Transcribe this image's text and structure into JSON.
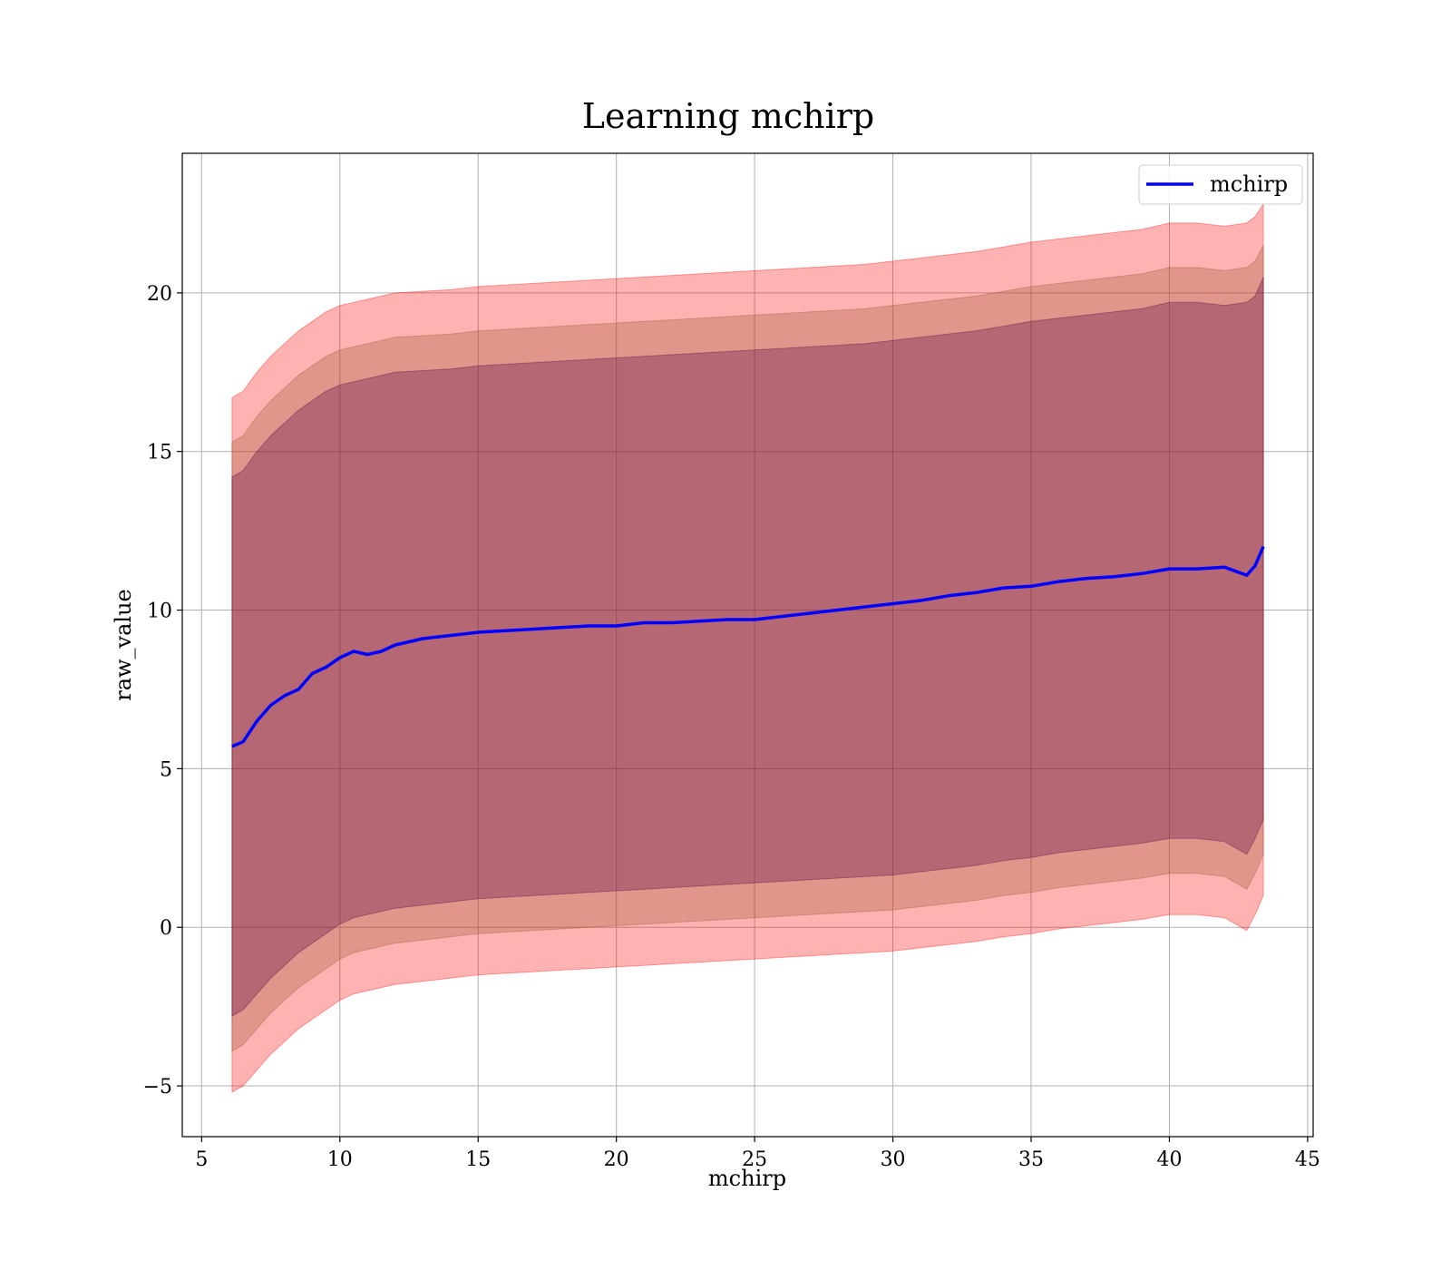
{
  "chart_data": {
    "type": "area",
    "title": "Learning mchirp",
    "xlabel": "mchirp",
    "ylabel": "raw_value",
    "xlim": [
      4.3,
      45.2
    ],
    "ylim": [
      -6.6,
      24.4
    ],
    "xticks": [
      5,
      10,
      15,
      20,
      25,
      30,
      35,
      40,
      45
    ],
    "yticks": [
      -5,
      0,
      5,
      10,
      15,
      20
    ],
    "xtick_labels": [
      "5",
      "10",
      "15",
      "20",
      "25",
      "30",
      "35",
      "40",
      "45"
    ],
    "ytick_labels": [
      "−5",
      "0",
      "5",
      "10",
      "15",
      "20"
    ],
    "grid": true,
    "legend": {
      "position": "top-right",
      "entries": [
        "mchirp"
      ]
    },
    "colors": {
      "line": "#0000ff",
      "band_outer": "#ff0000",
      "band_middle": "#a0522d",
      "band_inner": "#4b0040"
    },
    "x": [
      6.1,
      6.5,
      7.0,
      7.5,
      8.0,
      8.5,
      9.0,
      9.5,
      10.0,
      10.5,
      11.0,
      11.5,
      12.0,
      13.0,
      14.0,
      15.0,
      16.0,
      17.0,
      18.0,
      19.0,
      20.0,
      21.0,
      22.0,
      23.0,
      24.0,
      25.0,
      26.0,
      27.0,
      28.0,
      29.0,
      30.0,
      31.0,
      32.0,
      33.0,
      34.0,
      35.0,
      36.0,
      37.0,
      38.0,
      39.0,
      40.0,
      41.0,
      42.0,
      42.8,
      43.1,
      43.4
    ],
    "series": [
      {
        "name": "mchirp",
        "y": [
          5.7,
          5.85,
          6.5,
          7.0,
          7.3,
          7.5,
          8.0,
          8.2,
          8.5,
          8.7,
          8.6,
          8.7,
          8.9,
          9.1,
          9.2,
          9.3,
          9.35,
          9.4,
          9.45,
          9.5,
          9.5,
          9.6,
          9.6,
          9.65,
          9.7,
          9.7,
          9.8,
          9.9,
          10.0,
          10.1,
          10.2,
          10.3,
          10.45,
          10.55,
          10.7,
          10.75,
          10.9,
          11.0,
          11.05,
          11.15,
          11.3,
          11.3,
          11.35,
          11.1,
          11.4,
          12.0
        ]
      }
    ],
    "bands": [
      {
        "upper": [
          16.7,
          16.9,
          17.5,
          18.0,
          18.4,
          18.8,
          19.1,
          19.4,
          19.6,
          19.7,
          19.8,
          19.9,
          20.0,
          20.05,
          20.1,
          20.2,
          20.25,
          20.3,
          20.35,
          20.4,
          20.45,
          20.5,
          20.55,
          20.6,
          20.65,
          20.7,
          20.75,
          20.8,
          20.85,
          20.9,
          21.0,
          21.1,
          21.2,
          21.3,
          21.45,
          21.6,
          21.7,
          21.8,
          21.9,
          22.0,
          22.2,
          22.2,
          22.1,
          22.2,
          22.4,
          22.8
        ],
        "lower": [
          -5.2,
          -5.0,
          -4.5,
          -4.0,
          -3.6,
          -3.2,
          -2.9,
          -2.6,
          -2.3,
          -2.1,
          -2.0,
          -1.9,
          -1.8,
          -1.7,
          -1.6,
          -1.5,
          -1.45,
          -1.4,
          -1.35,
          -1.3,
          -1.25,
          -1.2,
          -1.15,
          -1.1,
          -1.05,
          -1.0,
          -0.95,
          -0.9,
          -0.85,
          -0.8,
          -0.75,
          -0.65,
          -0.55,
          -0.45,
          -0.3,
          -0.2,
          -0.05,
          0.05,
          0.15,
          0.25,
          0.4,
          0.4,
          0.3,
          -0.1,
          0.4,
          1.0
        ]
      },
      {
        "upper": [
          15.3,
          15.5,
          16.1,
          16.6,
          17.0,
          17.4,
          17.7,
          18.0,
          18.2,
          18.3,
          18.4,
          18.5,
          18.6,
          18.65,
          18.7,
          18.8,
          18.85,
          18.9,
          18.95,
          19.0,
          19.05,
          19.1,
          19.15,
          19.2,
          19.25,
          19.3,
          19.35,
          19.4,
          19.45,
          19.5,
          19.6,
          19.7,
          19.8,
          19.9,
          20.05,
          20.2,
          20.3,
          20.4,
          20.5,
          20.6,
          20.8,
          20.8,
          20.7,
          20.8,
          21.0,
          21.5
        ],
        "lower": [
          -3.9,
          -3.7,
          -3.2,
          -2.7,
          -2.3,
          -1.9,
          -1.6,
          -1.3,
          -1.0,
          -0.8,
          -0.7,
          -0.6,
          -0.5,
          -0.4,
          -0.3,
          -0.2,
          -0.15,
          -0.1,
          -0.05,
          0.0,
          0.05,
          0.1,
          0.15,
          0.2,
          0.25,
          0.3,
          0.35,
          0.4,
          0.45,
          0.5,
          0.55,
          0.65,
          0.75,
          0.85,
          1.0,
          1.1,
          1.25,
          1.35,
          1.45,
          1.55,
          1.7,
          1.7,
          1.6,
          1.2,
          1.7,
          2.3
        ]
      },
      {
        "upper": [
          14.2,
          14.4,
          15.0,
          15.5,
          15.9,
          16.3,
          16.6,
          16.9,
          17.1,
          17.2,
          17.3,
          17.4,
          17.5,
          17.55,
          17.6,
          17.7,
          17.75,
          17.8,
          17.85,
          17.9,
          17.95,
          18.0,
          18.05,
          18.1,
          18.15,
          18.2,
          18.25,
          18.3,
          18.35,
          18.4,
          18.5,
          18.6,
          18.7,
          18.8,
          18.95,
          19.1,
          19.2,
          19.3,
          19.4,
          19.5,
          19.7,
          19.7,
          19.6,
          19.7,
          19.9,
          20.5
        ],
        "lower": [
          -2.8,
          -2.6,
          -2.1,
          -1.6,
          -1.2,
          -0.8,
          -0.5,
          -0.2,
          0.1,
          0.3,
          0.4,
          0.5,
          0.6,
          0.7,
          0.8,
          0.9,
          0.95,
          1.0,
          1.05,
          1.1,
          1.15,
          1.2,
          1.25,
          1.3,
          1.35,
          1.4,
          1.45,
          1.5,
          1.55,
          1.6,
          1.65,
          1.75,
          1.85,
          1.95,
          2.1,
          2.2,
          2.35,
          2.45,
          2.55,
          2.65,
          2.8,
          2.8,
          2.7,
          2.3,
          2.8,
          3.4
        ]
      }
    ]
  }
}
